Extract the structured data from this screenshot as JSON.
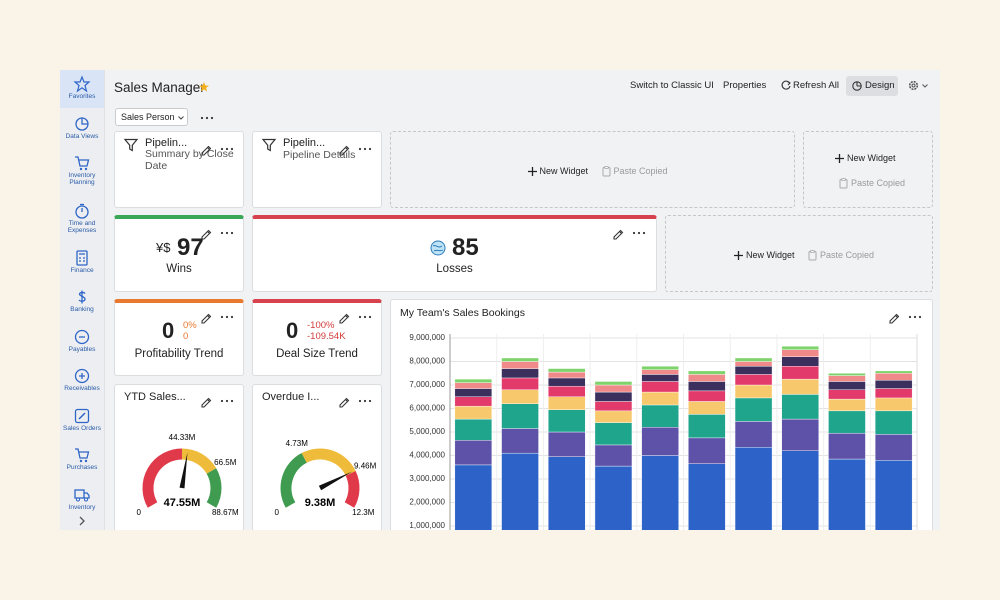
{
  "sidebar": {
    "items": [
      "Favorites",
      "Data Views",
      "Inventory Planning",
      "Time and Expenses",
      "Finance",
      "Banking",
      "Payables",
      "Receivables",
      "Sales Orders",
      "Purchases",
      "Inventory"
    ]
  },
  "header": {
    "title": "Sales Manager",
    "actions": [
      "Switch to Classic UI",
      "Properties",
      "Refresh All",
      "Design"
    ]
  },
  "filter": {
    "label": "Sales Person"
  },
  "widgets": {
    "pipeline_summary": {
      "title": "Pipelin...",
      "subtitle": "Summary by Close Date"
    },
    "pipeline_details": {
      "title": "Pipelin...",
      "subtitle": "Pipeline Details"
    },
    "placeholders": [
      {
        "new": "New Widget",
        "paste": "Paste Copied"
      },
      {
        "new": "New Widget",
        "paste": "Paste Copied"
      },
      {
        "new": "New Widget",
        "paste": "Paste Copied"
      }
    ],
    "wins": {
      "symbol": "¥$",
      "value": "97",
      "label": "Wins"
    },
    "losses": {
      "value": "85",
      "label": "Losses"
    },
    "profitability": {
      "value": "0",
      "change": "0%",
      "delta": "0",
      "label": "Profitability Trend"
    },
    "deal_size": {
      "value": "0",
      "change": "-100%",
      "delta": "-109.54K",
      "label": "Deal Size Trend"
    },
    "chart_title": "My Team's Sales Bookings"
  },
  "gauges": [
    {
      "title": "YTD Sales...",
      "value": 47.55,
      "value_label": "47.55M",
      "ticks": [
        {
          "value": 0,
          "label": "0"
        },
        {
          "value": 44.33,
          "label": "44.33M"
        },
        {
          "value": 66.5,
          "label": "66.5M"
        },
        {
          "value": 88.67,
          "label": "88.67M"
        }
      ],
      "band_colors": [
        "#e0394a",
        "#efbb3a",
        "#3e9b4f"
      ]
    },
    {
      "title": "Overdue I...",
      "value": 9.38,
      "value_label": "9.38M",
      "ticks": [
        {
          "value": 0,
          "label": "0"
        },
        {
          "value": 4.73,
          "label": "4.73M"
        },
        {
          "value": 9.46,
          "label": "9.46M"
        },
        {
          "value": 12.3,
          "label": "12.3M"
        }
      ],
      "band_colors": [
        "#3e9b4f",
        "#efbb3a",
        "#e0394a"
      ]
    }
  ],
  "chart_data": {
    "type": "bar",
    "stacked": true,
    "grid": true,
    "ylim": [
      0,
      9000000
    ],
    "yticks": [
      {
        "value": 1000000,
        "label": "1,000,000"
      },
      {
        "value": 2000000,
        "label": "2,000,000"
      },
      {
        "value": 3000000,
        "label": "3,000,000"
      },
      {
        "value": 4000000,
        "label": "4,000,000"
      },
      {
        "value": 5000000,
        "label": "5,000,000"
      },
      {
        "value": 6000000,
        "label": "6,000,000"
      },
      {
        "value": 7000000,
        "label": "7,000,000"
      },
      {
        "value": 8000000,
        "label": "8,000,000"
      },
      {
        "value": 9000000,
        "label": "9,000,000"
      }
    ],
    "series": [
      {
        "color": "#2d63c8",
        "values": [
          3600000,
          4100000,
          3950000,
          3550000,
          4000000,
          3650000,
          4350000,
          4200000,
          3850000,
          3800000
        ]
      },
      {
        "color": "#5d52a8",
        "values": [
          1050000,
          1050000,
          1050000,
          900000,
          1200000,
          1100000,
          1100000,
          1350000,
          1100000,
          1100000
        ]
      },
      {
        "color": "#1ea58c",
        "values": [
          900000,
          1050000,
          950000,
          950000,
          950000,
          1000000,
          1000000,
          1050000,
          950000,
          1000000
        ]
      },
      {
        "color": "#f8c96c",
        "values": [
          550000,
          600000,
          550000,
          500000,
          550000,
          550000,
          550000,
          650000,
          500000,
          550000
        ]
      },
      {
        "color": "#e23a6b",
        "values": [
          400000,
          500000,
          450000,
          400000,
          450000,
          450000,
          450000,
          550000,
          400000,
          400000
        ]
      },
      {
        "color": "#3b2f5e",
        "values": [
          350000,
          400000,
          350000,
          400000,
          300000,
          400000,
          350000,
          400000,
          350000,
          350000
        ]
      },
      {
        "color": "#f08a8a",
        "values": [
          250000,
          300000,
          250000,
          300000,
          200000,
          300000,
          200000,
          300000,
          250000,
          300000
        ]
      },
      {
        "color": "#7fd36b",
        "values": [
          150000,
          150000,
          150000,
          150000,
          150000,
          150000,
          150000,
          150000,
          100000,
          100000
        ]
      }
    ]
  }
}
